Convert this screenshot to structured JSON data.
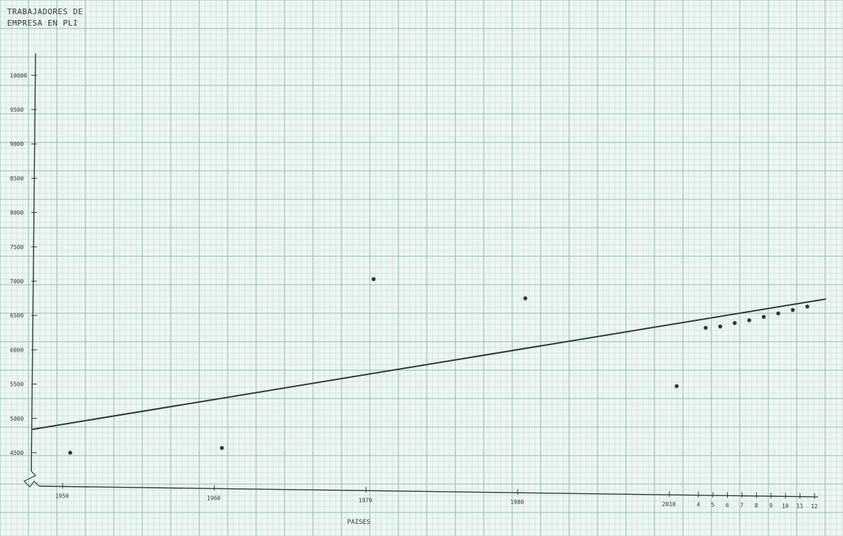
{
  "chart_data": {
    "type": "scatter",
    "title": "",
    "ylabel_lines": [
      "TRABAJADORES DE",
      "EMPRESA EN PLI"
    ],
    "xlabel": "PAISES",
    "grid": true,
    "y_ticks": [
      "10000",
      "9500",
      "9000",
      "8500",
      "8000",
      "7500",
      "7000",
      "6500",
      "6000",
      "5500",
      "5000",
      "4500"
    ],
    "y_values": [
      10000,
      9500,
      9000,
      8500,
      8000,
      7500,
      7000,
      6500,
      6000,
      5500,
      5000,
      4500
    ],
    "x_ticks": [
      "1950",
      "1960",
      "1970",
      "1980",
      "2010",
      "4",
      "5",
      "6",
      "7",
      "8",
      "9",
      "10",
      "11",
      "12"
    ],
    "x_tick_positions": [
      0,
      1,
      2,
      3,
      4,
      4.2,
      4.3,
      4.4,
      4.5,
      4.6,
      4.7,
      4.8,
      4.9,
      5.0
    ],
    "points": [
      {
        "x": 0.05,
        "y": 4500
      },
      {
        "x": 1.05,
        "y": 4570
      },
      {
        "x": 2.05,
        "y": 7030
      },
      {
        "x": 3.05,
        "y": 6750
      },
      {
        "x": 4.05,
        "y": 5470
      },
      {
        "x": 4.25,
        "y": 6320
      },
      {
        "x": 4.35,
        "y": 6340
      },
      {
        "x": 4.45,
        "y": 6390
      },
      {
        "x": 4.55,
        "y": 6430
      },
      {
        "x": 4.65,
        "y": 6480
      },
      {
        "x": 4.75,
        "y": 6530
      },
      {
        "x": 4.85,
        "y": 6580
      },
      {
        "x": 4.95,
        "y": 6630
      }
    ],
    "trend_line": {
      "x": [
        -0.2,
        5.08
      ],
      "y": [
        4840,
        6740
      ]
    },
    "colors": {
      "paper": "#eef6f2",
      "grid_minor": "#b9d8cf",
      "grid_major": "#8fbfb3",
      "ink": "#2e3a3a"
    }
  }
}
